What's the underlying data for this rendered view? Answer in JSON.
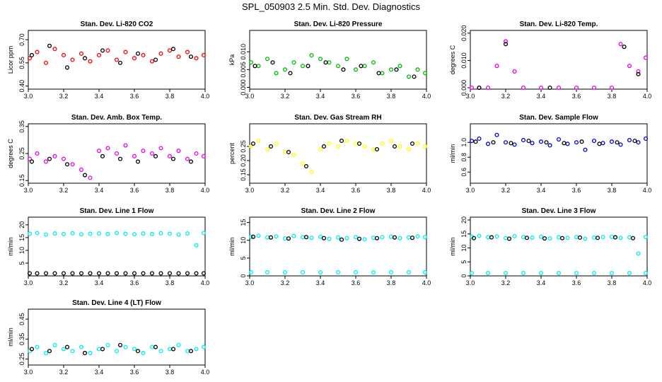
{
  "main_title": "SPL_050903  2.5 Min. Std. Dev. Diagnostics",
  "chart_data": [
    {
      "type": "scatter",
      "title": "Stan. Dev. Li-820 CO2",
      "ylabel": "Licor ppm",
      "xlim": [
        3.0,
        4.0
      ],
      "ylim": [
        0.38,
        0.76
      ],
      "x_ticks": [
        "3.0",
        "3.2",
        "3.4",
        "3.6",
        "3.8",
        "4.0"
      ],
      "y_ticks": [
        0.4,
        0.55,
        0.7
      ],
      "y_tick_labels": [
        "0.40",
        "0.55",
        "0.70"
      ],
      "series": [
        {
          "color": "#ff0000",
          "x": [
            3.0,
            3.05,
            3.1,
            3.15,
            3.2,
            3.25,
            3.3,
            3.35,
            3.4,
            3.45,
            3.5,
            3.55,
            3.6,
            3.65,
            3.7,
            3.75,
            3.8,
            3.85,
            3.9,
            3.95,
            4.0
          ],
          "y": [
            0.58,
            0.62,
            0.55,
            0.64,
            0.6,
            0.57,
            0.61,
            0.56,
            0.6,
            0.63,
            0.57,
            0.62,
            0.58,
            0.6,
            0.56,
            0.61,
            0.63,
            0.59,
            0.62,
            0.58,
            0.6
          ]
        },
        {
          "color": "#000000",
          "x": [
            3.02,
            3.12,
            3.22,
            3.32,
            3.42,
            3.52,
            3.62,
            3.72,
            3.82,
            3.92
          ],
          "y": [
            0.6,
            0.66,
            0.52,
            0.58,
            0.63,
            0.55,
            0.61,
            0.57,
            0.64,
            0.59
          ]
        }
      ]
    },
    {
      "type": "scatter",
      "title": "Stan. Dev. Li-820 Pressure",
      "ylabel": "kPa",
      "xlim": [
        3.0,
        4.0
      ],
      "ylim": [
        -0.0005,
        0.016
      ],
      "x_ticks": [
        "3.0",
        "3.2",
        "3.4",
        "3.6",
        "3.8",
        "4.0"
      ],
      "y_ticks": [
        0.0,
        0.005,
        0.01
      ],
      "y_tick_labels": [
        "0.000",
        "0.005",
        "0.010"
      ],
      "series": [
        {
          "color": "#00bb00",
          "x": [
            3.0,
            3.05,
            3.1,
            3.15,
            3.2,
            3.25,
            3.3,
            3.35,
            3.4,
            3.45,
            3.5,
            3.55,
            3.6,
            3.65,
            3.7,
            3.75,
            3.8,
            3.85,
            3.9,
            3.95,
            4.0
          ],
          "y": [
            0.007,
            0.006,
            0.008,
            0.004,
            0.005,
            0.007,
            0.006,
            0.009,
            0.008,
            0.007,
            0.006,
            0.008,
            0.005,
            0.006,
            0.007,
            0.004,
            0.005,
            0.006,
            0.003,
            0.005,
            0.004
          ]
        },
        {
          "color": "#000000",
          "x": [
            3.03,
            3.13,
            3.23,
            3.33,
            3.43,
            3.53,
            3.63,
            3.73,
            3.83,
            3.93
          ],
          "y": [
            0.006,
            0.007,
            0.004,
            0.006,
            0.007,
            0.005,
            0.006,
            0.004,
            0.005,
            0.003
          ]
        }
      ]
    },
    {
      "type": "scatter",
      "title": "Stan. Dev. Li-820 Temp.",
      "ylabel": "degrees C",
      "xlim": [
        3.0,
        4.0
      ],
      "ylim": [
        -0.0005,
        0.021
      ],
      "x_ticks": [
        "3.0",
        "3.2",
        "3.4",
        "3.6",
        "3.8",
        "4.0"
      ],
      "y_ticks": [
        0.0,
        0.01,
        0.02
      ],
      "y_tick_labels": [
        "0.000",
        "0.010",
        "0.020"
      ],
      "series": [
        {
          "color": "#ee00ee",
          "x": [
            3.0,
            3.05,
            3.1,
            3.15,
            3.2,
            3.25,
            3.3,
            3.4,
            3.5,
            3.6,
            3.7,
            3.8,
            3.85,
            3.9,
            3.95,
            4.0
          ],
          "y": [
            0.0,
            0.0,
            0.0,
            0.008,
            0.017,
            0.006,
            0.0,
            0.0,
            0.0,
            0.0,
            0.0,
            0.0,
            0.016,
            0.008,
            0.006,
            0.011
          ]
        },
        {
          "color": "#000000",
          "x": [
            3.05,
            3.2,
            3.45,
            3.87,
            3.95
          ],
          "y": [
            0.0,
            0.016,
            0.0,
            0.015,
            0.005
          ]
        }
      ]
    },
    {
      "type": "scatter",
      "title": "Stan. Dev. Amb. Box Temp.",
      "ylabel": "degrees C",
      "xlim": [
        3.0,
        4.0
      ],
      "ylim": [
        0.14,
        0.36
      ],
      "x_ticks": [
        "3.0",
        "3.2",
        "3.4",
        "3.6",
        "3.8",
        "4.0"
      ],
      "y_ticks": [
        0.15,
        0.25,
        0.35
      ],
      "y_tick_labels": [
        "0.15",
        "0.25",
        "0.35"
      ],
      "series": [
        {
          "color": "#ee00ee",
          "x": [
            3.0,
            3.05,
            3.1,
            3.15,
            3.2,
            3.25,
            3.3,
            3.35,
            3.4,
            3.45,
            3.5,
            3.55,
            3.6,
            3.65,
            3.7,
            3.75,
            3.8,
            3.85,
            3.9,
            3.95,
            4.0
          ],
          "y": [
            0.23,
            0.25,
            0.22,
            0.24,
            0.23,
            0.21,
            0.19,
            0.16,
            0.26,
            0.27,
            0.25,
            0.28,
            0.24,
            0.26,
            0.25,
            0.27,
            0.24,
            0.26,
            0.23,
            0.25,
            0.24
          ]
        },
        {
          "color": "#000000",
          "x": [
            3.02,
            3.12,
            3.22,
            3.32,
            3.42,
            3.52,
            3.62,
            3.72,
            3.82,
            3.92
          ],
          "y": [
            0.22,
            0.23,
            0.21,
            0.17,
            0.24,
            0.23,
            0.22,
            0.24,
            0.23,
            0.22
          ]
        }
      ]
    },
    {
      "type": "scatter",
      "title": "Stan. Dev. Gas Stream RH",
      "ylabel": "percent",
      "xlim": [
        3.0,
        4.0
      ],
      "ylim": [
        0.12,
        0.33
      ],
      "x_ticks": [
        "3.0",
        "3.2",
        "3.4",
        "3.6",
        "3.8",
        "4.0"
      ],
      "y_ticks": [
        0.15,
        0.2,
        0.25
      ],
      "y_tick_labels": [
        "0.15",
        "0.20",
        "0.25"
      ],
      "series": [
        {
          "color": "#ffff00",
          "x": [
            3.0,
            3.05,
            3.1,
            3.15,
            3.2,
            3.25,
            3.3,
            3.35,
            3.4,
            3.45,
            3.5,
            3.55,
            3.6,
            3.65,
            3.7,
            3.75,
            3.8,
            3.85,
            3.9,
            3.95,
            4.0
          ],
          "y": [
            0.25,
            0.27,
            0.24,
            0.26,
            0.23,
            0.22,
            0.19,
            0.16,
            0.24,
            0.26,
            0.25,
            0.27,
            0.26,
            0.25,
            0.24,
            0.26,
            0.27,
            0.25,
            0.24,
            0.26,
            0.25
          ]
        },
        {
          "color": "#000000",
          "x": [
            3.02,
            3.12,
            3.22,
            3.32,
            3.42,
            3.52,
            3.62,
            3.72,
            3.82,
            3.92
          ],
          "y": [
            0.26,
            0.25,
            0.23,
            0.18,
            0.25,
            0.27,
            0.26,
            0.24,
            0.25,
            0.26
          ]
        }
      ]
    },
    {
      "type": "scatter",
      "title": "Stan. Dev. Sample Flow",
      "ylabel": "ml/min",
      "xlim": [
        3.0,
        4.0
      ],
      "ylim": [
        0.45,
        1.25
      ],
      "x_ticks": [
        "3.0",
        "3.2",
        "3.4",
        "3.6",
        "3.8",
        "4.0"
      ],
      "y_ticks": [
        0.6,
        0.8,
        1.0
      ],
      "y_tick_labels": [
        "0.6",
        "0.8",
        "1.0"
      ],
      "series": [
        {
          "color": "#0000dd",
          "x": [
            3.0,
            3.05,
            3.1,
            3.15,
            3.2,
            3.25,
            3.3,
            3.35,
            3.4,
            3.45,
            3.5,
            3.55,
            3.6,
            3.65,
            3.7,
            3.75,
            3.8,
            3.85,
            3.9,
            3.95,
            4.0
          ],
          "y": [
            1.02,
            1.05,
            0.98,
            1.1,
            1.0,
            0.97,
            1.03,
            0.99,
            1.01,
            0.96,
            1.04,
            0.98,
            1.0,
            0.9,
            1.02,
            0.99,
            1.01,
            0.97,
            1.03,
            1.0,
            1.05
          ]
        },
        {
          "color": "#000000",
          "x": [
            3.03,
            3.13,
            3.23,
            3.33,
            3.43,
            3.53,
            3.63,
            3.73,
            3.83,
            3.93
          ],
          "y": [
            1.01,
            1.0,
            0.99,
            1.02,
            1.0,
            0.99,
            1.01,
            0.98,
            1.0,
            1.02
          ]
        }
      ]
    },
    {
      "type": "scatter",
      "title": "Stan. Dev. Line 1 Flow",
      "ylabel": "ml/min",
      "xlim": [
        3.0,
        4.0
      ],
      "ylim": [
        0.0,
        23.0
      ],
      "x_ticks": [
        "3.0",
        "3.2",
        "3.4",
        "3.6",
        "3.8",
        "4.0"
      ],
      "y_ticks": [
        5,
        10,
        15,
        20
      ],
      "y_tick_labels": [
        "5",
        "10",
        "15",
        "20"
      ],
      "series": [
        {
          "color": "#00eeee",
          "x": [
            3.0,
            3.05,
            3.1,
            3.15,
            3.2,
            3.25,
            3.3,
            3.35,
            3.4,
            3.45,
            3.5,
            3.55,
            3.6,
            3.65,
            3.7,
            3.75,
            3.8,
            3.85,
            3.9,
            3.95,
            4.0
          ],
          "y": [
            16.5,
            16.8,
            16.2,
            16.6,
            16.4,
            16.7,
            16.3,
            16.5,
            16.6,
            16.4,
            16.8,
            16.5,
            16.3,
            16.6,
            16.4,
            16.7,
            16.5,
            16.2,
            16.6,
            12.0,
            16.8
          ]
        },
        {
          "color": "#000000",
          "x": [
            3.0,
            3.05,
            3.1,
            3.15,
            3.2,
            3.25,
            3.3,
            3.35,
            3.4,
            3.45,
            3.5,
            3.55,
            3.6,
            3.65,
            3.7,
            3.75,
            3.8,
            3.85,
            3.9,
            3.95,
            4.0
          ],
          "y": [
            1.0,
            1.0,
            1.0,
            1.0,
            1.0,
            1.0,
            1.0,
            1.0,
            1.0,
            1.0,
            1.0,
            1.0,
            1.0,
            1.0,
            1.0,
            1.0,
            1.0,
            1.0,
            1.0,
            1.0,
            1.0
          ]
        }
      ]
    },
    {
      "type": "scatter",
      "title": "Stan. Dev. Line 2 Flow",
      "ylabel": "ml/min",
      "xlim": [
        3.0,
        4.0
      ],
      "ylim": [
        0.0,
        16.5
      ],
      "x_ticks": [
        "3.0",
        "3.2",
        "3.4",
        "3.6",
        "3.8",
        "4.0"
      ],
      "y_ticks": [
        0,
        5,
        10,
        15
      ],
      "y_tick_labels": [
        "0",
        "5",
        "10",
        "15"
      ],
      "series": [
        {
          "color": "#00eeee",
          "x": [
            3.0,
            3.05,
            3.1,
            3.15,
            3.2,
            3.25,
            3.3,
            3.35,
            3.4,
            3.45,
            3.5,
            3.55,
            3.6,
            3.65,
            3.7,
            3.75,
            3.8,
            3.85,
            3.9,
            3.95,
            4.0,
            3.0,
            3.1,
            3.2,
            3.3,
            3.4,
            3.5,
            3.6,
            3.7,
            3.8,
            3.9,
            4.0
          ],
          "y": [
            11.0,
            11.3,
            10.8,
            11.1,
            10.5,
            11.2,
            10.9,
            10.7,
            11.0,
            10.4,
            10.8,
            10.6,
            10.9,
            10.3,
            10.7,
            10.9,
            11.0,
            10.6,
            10.8,
            11.1,
            10.9,
            1.0,
            1.0,
            1.0,
            1.0,
            1.0,
            1.0,
            1.0,
            1.0,
            1.0,
            1.0,
            1.0
          ]
        },
        {
          "color": "#000000",
          "x": [
            3.02,
            3.12,
            3.22,
            3.32,
            3.42,
            3.52,
            3.62,
            3.72,
            3.82,
            3.92
          ],
          "y": [
            11.0,
            10.8,
            10.5,
            10.9,
            10.6,
            10.2,
            10.4,
            10.6,
            10.8,
            10.7
          ]
        }
      ]
    },
    {
      "type": "scatter",
      "title": "Stan. Dev. Line 3 Flow",
      "ylabel": "ml/min",
      "xlim": [
        3.0,
        4.0
      ],
      "ylim": [
        0.0,
        21.0
      ],
      "x_ticks": [
        "3.0",
        "3.2",
        "3.4",
        "3.6",
        "3.8",
        "4.0"
      ],
      "y_ticks": [
        0,
        5,
        10,
        15,
        20
      ],
      "y_tick_labels": [
        "0",
        "5",
        "10",
        "15",
        "20"
      ],
      "series": [
        {
          "color": "#00eeee",
          "x": [
            3.0,
            3.05,
            3.1,
            3.15,
            3.2,
            3.25,
            3.3,
            3.35,
            3.4,
            3.45,
            3.5,
            3.55,
            3.6,
            3.65,
            3.7,
            3.75,
            3.8,
            3.85,
            3.9,
            3.95,
            4.0,
            3.0,
            3.1,
            3.2,
            3.3,
            3.4,
            3.5,
            3.6,
            3.7,
            3.8,
            3.9,
            4.0
          ],
          "y": [
            14.0,
            14.3,
            13.8,
            14.1,
            13.5,
            14.2,
            13.9,
            13.7,
            14.0,
            13.4,
            13.8,
            13.6,
            13.9,
            13.3,
            13.7,
            13.9,
            14.0,
            13.6,
            13.8,
            8.0,
            13.9,
            1.0,
            1.0,
            1.0,
            1.0,
            1.0,
            1.0,
            1.0,
            1.0,
            1.0,
            1.0,
            1.0
          ]
        },
        {
          "color": "#000000",
          "x": [
            3.02,
            3.12,
            3.22,
            3.32,
            3.42,
            3.52,
            3.62,
            3.72,
            3.82,
            3.92
          ],
          "y": [
            13.5,
            13.8,
            13.3,
            13.6,
            13.4,
            13.5,
            13.7,
            13.6,
            13.8,
            13.5
          ]
        }
      ]
    },
    {
      "type": "scatter",
      "title": "Stan. Dev. Line 4 (LT) Flow",
      "ylabel": "ml/min",
      "xlim": [
        3.0,
        4.0
      ],
      "ylim": [
        0.22,
        0.5
      ],
      "x_ticks": [
        "3.0",
        "3.2",
        "3.4",
        "3.6",
        "3.8",
        "4.0"
      ],
      "y_ticks": [
        0.25,
        0.35,
        0.45
      ],
      "y_tick_labels": [
        "0.25",
        "0.35",
        "0.45"
      ],
      "series": [
        {
          "color": "#00eeee",
          "x": [
            3.0,
            3.05,
            3.1,
            3.15,
            3.2,
            3.25,
            3.3,
            3.35,
            3.4,
            3.45,
            3.5,
            3.55,
            3.6,
            3.65,
            3.7,
            3.75,
            3.8,
            3.85,
            3.9,
            3.95,
            4.0
          ],
          "y": [
            0.29,
            0.31,
            0.28,
            0.32,
            0.3,
            0.29,
            0.31,
            0.28,
            0.3,
            0.32,
            0.29,
            0.31,
            0.3,
            0.28,
            0.31,
            0.29,
            0.3,
            0.32,
            0.29,
            0.3,
            0.31
          ]
        },
        {
          "color": "#000000",
          "x": [
            3.02,
            3.12,
            3.22,
            3.32,
            3.42,
            3.52,
            3.62,
            3.72,
            3.82,
            3.92
          ],
          "y": [
            0.3,
            0.29,
            0.31,
            0.28,
            0.3,
            0.32,
            0.29,
            0.31,
            0.3,
            0.29
          ]
        }
      ]
    }
  ]
}
